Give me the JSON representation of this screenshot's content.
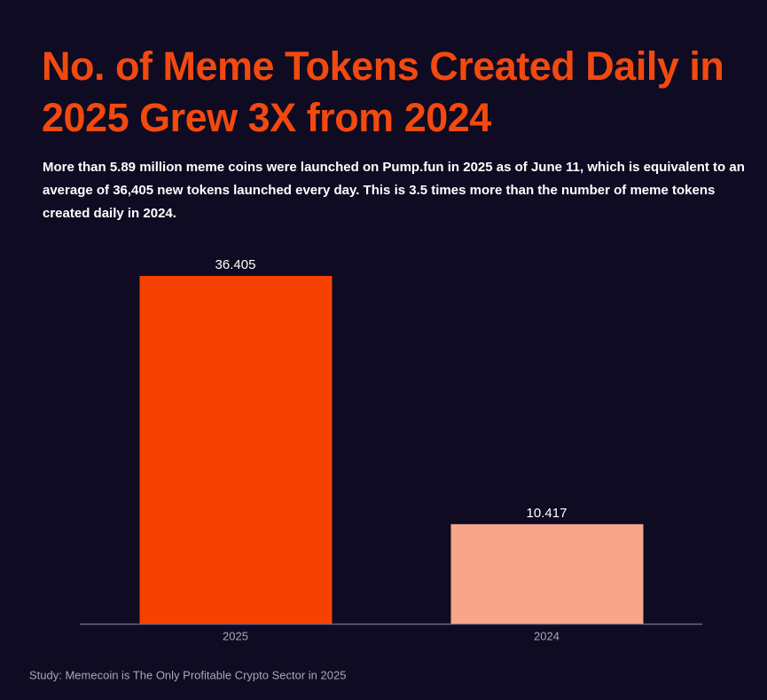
{
  "chart_data": {
    "type": "bar",
    "title": "No. of Meme Tokens Created Daily in 2025 Grew 3X from 2024",
    "subtitle": "More than 5.89 million meme coins were launched on Pump.fun in 2025 as of June 11, which is equivalent to an average of 36,405 new tokens launched every day. This is 3.5 times more than the number of meme tokens created daily in 2024.",
    "categories": [
      "2025",
      "2024"
    ],
    "values": [
      36.405,
      10.417
    ],
    "colors": [
      "#f54200",
      "#f8a68a"
    ],
    "source": "Study: Memecoin is The Only Profitable Crypto Sector in 2025"
  }
}
